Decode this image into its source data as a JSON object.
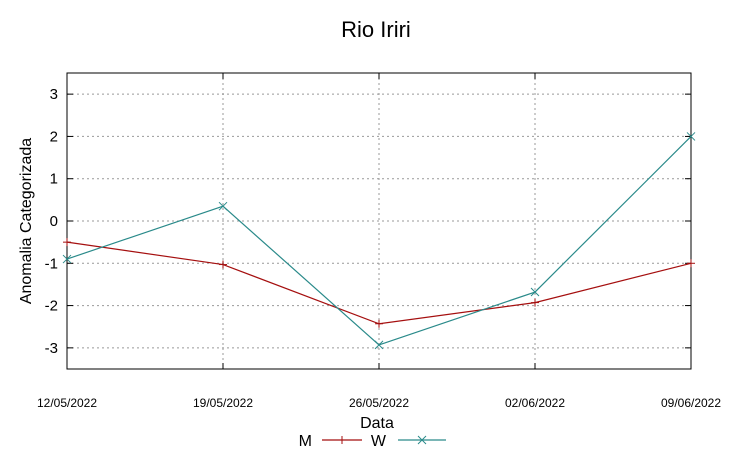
{
  "chart_data": {
    "type": "line",
    "title": "Rio Iriri",
    "xlabel": "Data",
    "ylabel": "Anomalia Categorizada",
    "categories": [
      "12/05/2022",
      "19/05/2022",
      "26/05/2022",
      "02/06/2022",
      "09/06/2022"
    ],
    "y_ticks": [
      "3",
      "2",
      "1",
      "0",
      "-1",
      "-2",
      "-3"
    ],
    "ylim": [
      -3.5,
      3.5
    ],
    "grid": true,
    "legend_position": "bottom",
    "series": [
      {
        "name": "M",
        "color": "#a50f0f",
        "marker": "plus",
        "values": [
          -0.5,
          -1.03,
          -2.43,
          -1.93,
          -1.0
        ]
      },
      {
        "name": "W",
        "color": "#2a8a8a",
        "marker": "x",
        "values": [
          -0.9,
          0.35,
          -2.93,
          -1.68,
          2.0
        ]
      }
    ]
  }
}
